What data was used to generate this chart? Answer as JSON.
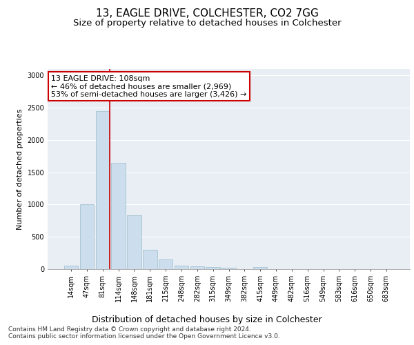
{
  "title": "13, EAGLE DRIVE, COLCHESTER, CO2 7GG",
  "subtitle": "Size of property relative to detached houses in Colchester",
  "xlabel": "Distribution of detached houses by size in Colchester",
  "ylabel": "Number of detached properties",
  "bar_labels": [
    "14sqm",
    "47sqm",
    "81sqm",
    "114sqm",
    "148sqm",
    "181sqm",
    "215sqm",
    "248sqm",
    "282sqm",
    "315sqm",
    "349sqm",
    "382sqm",
    "415sqm",
    "449sqm",
    "482sqm",
    "516sqm",
    "549sqm",
    "583sqm",
    "616sqm",
    "650sqm",
    "683sqm"
  ],
  "bar_values": [
    55,
    1000,
    2450,
    1650,
    830,
    300,
    150,
    55,
    40,
    30,
    20,
    0,
    35,
    0,
    0,
    0,
    0,
    0,
    0,
    0,
    0
  ],
  "bar_color": "#ccdded",
  "bar_edge_color": "#9abccc",
  "vline_x_index": 2,
  "vline_color": "#cc0000",
  "annotation_text": "13 EAGLE DRIVE: 108sqm\n← 46% of detached houses are smaller (2,969)\n53% of semi-detached houses are larger (3,426) →",
  "annotation_box_facecolor": "#ffffff",
  "annotation_box_edgecolor": "#cc0000",
  "ylim": [
    0,
    3100
  ],
  "yticks": [
    0,
    500,
    1000,
    1500,
    2000,
    2500,
    3000
  ],
  "footer_text": "Contains HM Land Registry data © Crown copyright and database right 2024.\nContains public sector information licensed under the Open Government Licence v3.0.",
  "bg_color": "#ffffff",
  "plot_bg_color": "#e8eef4",
  "grid_color": "#ffffff",
  "title_fontsize": 11,
  "subtitle_fontsize": 9.5,
  "xlabel_fontsize": 9,
  "ylabel_fontsize": 8,
  "tick_fontsize": 7,
  "annotation_fontsize": 8,
  "footer_fontsize": 6.5
}
